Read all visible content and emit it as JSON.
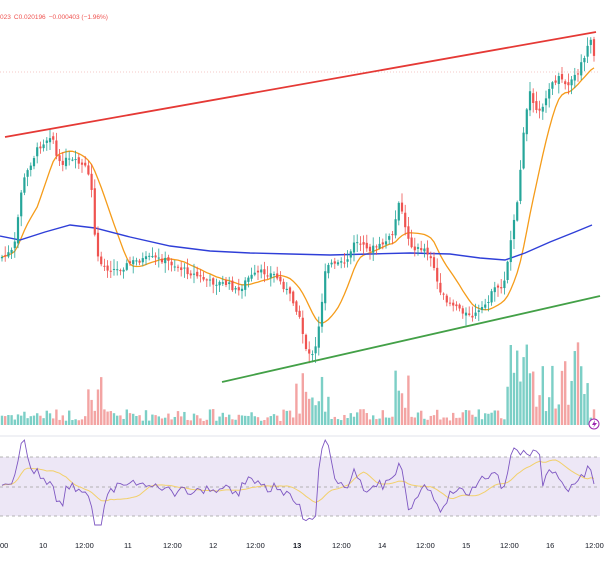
{
  "legend": {
    "ohlc_fragment": "023",
    "close_label": "C",
    "close_value": "0.020196",
    "change": "−0.000403 (−1.96%)"
  },
  "x_axis_labels": [
    {
      "label": "00",
      "bold": false
    },
    {
      "label": "10",
      "bold": false
    },
    {
      "label": "12:00",
      "bold": false
    },
    {
      "label": "11",
      "bold": false
    },
    {
      "label": "12:00",
      "bold": false
    },
    {
      "label": "12",
      "bold": false
    },
    {
      "label": "12:00",
      "bold": false
    },
    {
      "label": "13",
      "bold": true
    },
    {
      "label": "12:00",
      "bold": false
    },
    {
      "label": "14",
      "bold": false
    },
    {
      "label": "12:00",
      "bold": false
    },
    {
      "label": "15",
      "bold": false
    },
    {
      "label": "12:00",
      "bold": false
    },
    {
      "label": "16",
      "bold": false
    },
    {
      "label": "12:00",
      "bold": false
    }
  ],
  "colors": {
    "up": "#26a69a",
    "down": "#ef5350",
    "upper_trendline": "#e53935",
    "lower_trendline": "#43a047",
    "ma_fast": "#f59c1a",
    "ma_slow": "#2f3fd8",
    "rsi_line": "#7e57c2",
    "rsi_signal": "#f2d06b",
    "rsi_band": "#ede7f6"
  },
  "icons": {
    "flash": "lightning-bolt-icon"
  }
}
